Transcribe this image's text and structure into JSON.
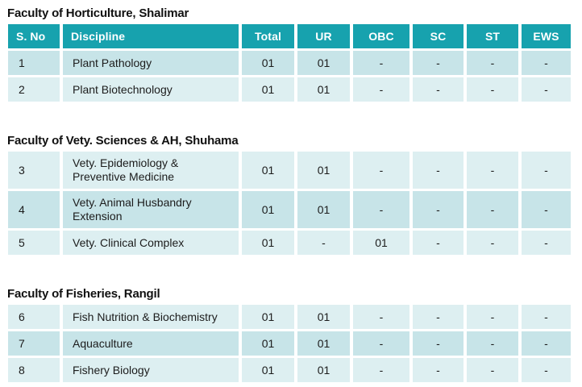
{
  "colors": {
    "header_bg": "#17a2ae",
    "header_text": "#ffffff",
    "row_dark": "#c7e4e8",
    "row_light": "#ddeff1",
    "body_text": "#1c1c1c",
    "title_text": "#111111",
    "page_bg": "#ffffff"
  },
  "table_header": {
    "columns": [
      {
        "key": "sno",
        "label": "S. No"
      },
      {
        "key": "discipline",
        "label": "Discipline"
      },
      {
        "key": "total",
        "label": "Total"
      },
      {
        "key": "ur",
        "label": "UR"
      },
      {
        "key": "obc",
        "label": "OBC"
      },
      {
        "key": "sc",
        "label": "SC"
      },
      {
        "key": "st",
        "label": "ST"
      },
      {
        "key": "ews",
        "label": "EWS"
      }
    ]
  },
  "sections": [
    {
      "title": "Faculty of Horticulture, Shalimar",
      "show_header": true,
      "rows": [
        {
          "sno": "1",
          "discipline": "Plant Pathology",
          "total": "01",
          "ur": "01",
          "obc": "-",
          "sc": "-",
          "st": "-",
          "ews": "-",
          "shade": "dark"
        },
        {
          "sno": "2",
          "discipline": "Plant Biotechnology",
          "total": "01",
          "ur": "01",
          "obc": "-",
          "sc": "-",
          "st": "-",
          "ews": "-",
          "shade": "light"
        }
      ]
    },
    {
      "title": "Faculty of Vety. Sciences & AH, Shuhama",
      "show_header": false,
      "rows": [
        {
          "sno": "3",
          "discipline": "Vety. Epidemiology & Preventive Medicine",
          "total": "01",
          "ur": "01",
          "obc": "-",
          "sc": "-",
          "st": "-",
          "ews": "-",
          "shade": "light"
        },
        {
          "sno": "4",
          "discipline": "Vety. Animal Husbandry Extension",
          "total": "01",
          "ur": "01",
          "obc": "-",
          "sc": "-",
          "st": "-",
          "ews": "-",
          "shade": "dark"
        },
        {
          "sno": "5",
          "discipline": "Vety. Clinical Complex",
          "total": "01",
          "ur": "-",
          "obc": "01",
          "sc": "-",
          "st": "-",
          "ews": "-",
          "shade": "light"
        }
      ]
    },
    {
      "title": "Faculty of Fisheries, Rangil",
      "show_header": false,
      "rows": [
        {
          "sno": "6",
          "discipline": "Fish Nutrition & Biochemistry",
          "total": "01",
          "ur": "01",
          "obc": "-",
          "sc": "-",
          "st": "-",
          "ews": "-",
          "shade": "light"
        },
        {
          "sno": "7",
          "discipline": "Aquaculture",
          "total": "01",
          "ur": "01",
          "obc": "-",
          "sc": "-",
          "st": "-",
          "ews": "-",
          "shade": "dark"
        },
        {
          "sno": "8",
          "discipline": "Fishery Biology",
          "total": "01",
          "ur": "01",
          "obc": "-",
          "sc": "-",
          "st": "-",
          "ews": "-",
          "shade": "light"
        }
      ]
    }
  ]
}
